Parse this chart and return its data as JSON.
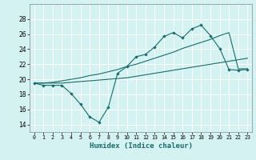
{
  "xlabel": "Humidex (Indice chaleur)",
  "bg_color": "#d4f2f2",
  "line_color": "#1a6b6b",
  "x_values": [
    0,
    1,
    2,
    3,
    4,
    5,
    6,
    7,
    8,
    9,
    10,
    11,
    12,
    13,
    14,
    15,
    16,
    17,
    18,
    19,
    20,
    21,
    22,
    23
  ],
  "line1": [
    19.5,
    19.2,
    19.2,
    19.2,
    18.1,
    16.7,
    15.0,
    14.3,
    16.3,
    20.8,
    21.7,
    23.0,
    23.3,
    24.3,
    25.7,
    26.2,
    25.5,
    26.7,
    27.2,
    25.8,
    24.1,
    21.3,
    21.2,
    21.3
  ],
  "line2": [
    19.5,
    19.5,
    19.5,
    19.5,
    19.6,
    19.7,
    19.8,
    19.9,
    20.0,
    20.1,
    20.2,
    20.4,
    20.6,
    20.8,
    21.0,
    21.2,
    21.4,
    21.6,
    21.8,
    22.0,
    22.2,
    22.4,
    22.6,
    22.8
  ],
  "line3": [
    19.5,
    19.5,
    19.6,
    19.8,
    20.0,
    20.2,
    20.5,
    20.7,
    21.0,
    21.3,
    21.7,
    22.0,
    22.4,
    22.8,
    23.2,
    23.6,
    24.1,
    24.5,
    24.9,
    25.3,
    25.8,
    26.2,
    21.4,
    21.4
  ],
  "ylim_min": 13,
  "ylim_max": 30,
  "yticks": [
    14,
    16,
    18,
    20,
    22,
    24,
    26,
    28
  ],
  "xticks": [
    0,
    1,
    2,
    3,
    4,
    5,
    6,
    7,
    8,
    9,
    10,
    11,
    12,
    13,
    14,
    15,
    16,
    17,
    18,
    19,
    20,
    21,
    22,
    23
  ],
  "grid_color": "#c0e8e8",
  "spine_color": "#888888"
}
